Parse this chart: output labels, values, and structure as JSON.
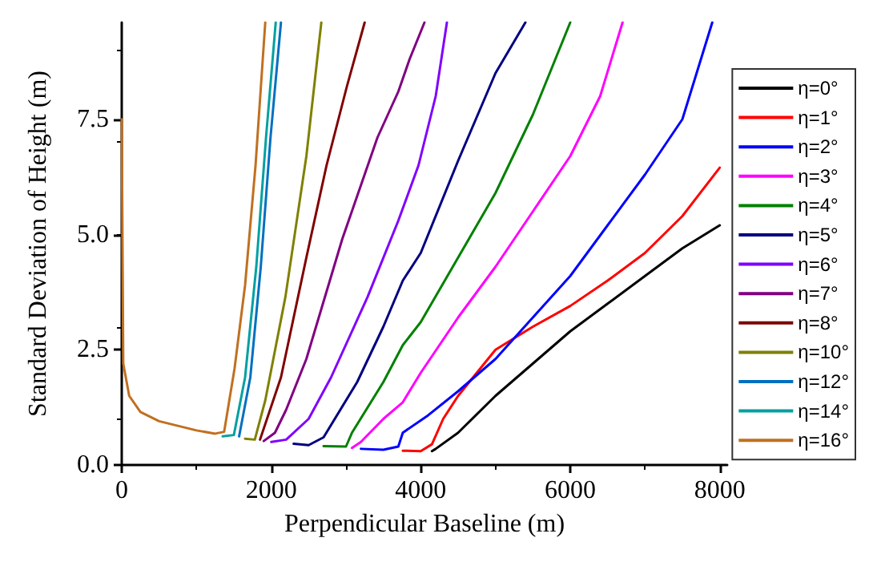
{
  "chart_data": {
    "type": "line",
    "xlabel": "Perpendicular Baseline (m)",
    "ylabel": "Standard Deviation of Height (m)",
    "xlim": [
      0,
      8100
    ],
    "ylim": [
      0,
      9.6
    ],
    "xticks": [
      0,
      2000,
      4000,
      6000,
      8000
    ],
    "yticks": [
      {
        "value": 0,
        "label": "0.0"
      },
      {
        "value": 2.5,
        "label": "2.5"
      },
      {
        "value": 5,
        "label": "5.0"
      },
      {
        "value": 7.5,
        "label": "7.5"
      }
    ],
    "grid": false,
    "legend": "right",
    "marker": "none",
    "line_style": "solid",
    "series": [
      {
        "name": "η=0°",
        "color": "#000000",
        "x": [
          4150,
          4200,
          4500,
          5000,
          5500,
          6000,
          6500,
          7000,
          7500,
          8000
        ],
        "values": [
          0.3,
          0.35,
          0.7,
          1.5,
          2.2,
          2.9,
          3.5,
          4.1,
          4.7,
          5.2
        ]
      },
      {
        "name": "η=1°",
        "color": "#ff0000",
        "x": [
          3760,
          4000,
          4150,
          4300,
          4500,
          5000,
          5500,
          6000,
          6500,
          7000,
          7500,
          8000
        ],
        "values": [
          0.31,
          0.3,
          0.45,
          1.0,
          1.5,
          2.5,
          3.0,
          3.45,
          4.0,
          4.6,
          5.4,
          6.45
        ]
      },
      {
        "name": "η=2°",
        "color": "#0000ff",
        "x": [
          3200,
          3500,
          3700,
          3760,
          4100,
          4500,
          5000,
          5500,
          6000,
          6500,
          7000,
          7500,
          7900
        ],
        "values": [
          0.35,
          0.33,
          0.4,
          0.7,
          1.08,
          1.6,
          2.3,
          3.2,
          4.1,
          5.2,
          6.3,
          7.5,
          9.6
        ]
      },
      {
        "name": "η=3°",
        "color": "#ff00ff",
        "x": [
          3080,
          3200,
          3500,
          3760,
          4000,
          4500,
          5000,
          5500,
          6000,
          6400,
          6700
        ],
        "values": [
          0.37,
          0.5,
          1.0,
          1.36,
          2.0,
          3.2,
          4.3,
          5.5,
          6.7,
          8.0,
          9.6
        ]
      },
      {
        "name": "η=4°",
        "color": "#008000",
        "x": [
          2700,
          3000,
          3080,
          3500,
          3760,
          4000,
          4500,
          5000,
          5500,
          6000
        ],
        "values": [
          0.41,
          0.4,
          0.7,
          1.8,
          2.6,
          3.1,
          4.5,
          5.9,
          7.6,
          9.6
        ]
      },
      {
        "name": "η=5°",
        "color": "#000080",
        "x": [
          2300,
          2500,
          2700,
          3150,
          3500,
          3760,
          4000,
          4500,
          5000,
          5400
        ],
        "values": [
          0.46,
          0.43,
          0.6,
          1.8,
          3.0,
          4.0,
          4.6,
          6.6,
          8.5,
          9.6
        ]
      },
      {
        "name": "η=6°",
        "color": "#8000ff",
        "x": [
          2000,
          2200,
          2500,
          2800,
          3290,
          3700,
          3970,
          4200,
          4350
        ],
        "values": [
          0.5,
          0.55,
          1.0,
          1.9,
          3.65,
          5.3,
          6.5,
          8.0,
          9.6
        ]
      },
      {
        "name": "η=7°",
        "color": "#800080",
        "x": [
          1900,
          2050,
          2200,
          2470,
          2950,
          3420,
          3700,
          3850,
          4050
        ],
        "values": [
          0.52,
          0.7,
          1.2,
          2.3,
          4.9,
          7.1,
          8.1,
          8.8,
          9.6
        ]
      },
      {
        "name": "η=8°",
        "color": "#800000",
        "x": [
          1850,
          2130,
          2470,
          2740,
          3010,
          3250
        ],
        "values": [
          0.55,
          1.9,
          4.5,
          6.5,
          8.2,
          9.6
        ]
      },
      {
        "name": "η=10°",
        "color": "#808000",
        "x": [
          1650,
          1780,
          1920,
          2190,
          2470,
          2670
        ],
        "values": [
          0.57,
          0.55,
          1.4,
          3.65,
          6.7,
          9.6
        ]
      },
      {
        "name": "η=12°",
        "color": "#0070c0",
        "x": [
          1570,
          1720,
          1860,
          1990,
          2130
        ],
        "values": [
          0.62,
          1.9,
          4.3,
          7.1,
          9.6
        ]
      },
      {
        "name": "η=14°",
        "color": "#00a0a0",
        "x": [
          1350,
          1500,
          1650,
          1800,
          1930,
          2060
        ],
        "values": [
          0.62,
          0.65,
          1.9,
          4.3,
          7.1,
          9.6
        ]
      },
      {
        "name": "η=16°",
        "color": "#c07020",
        "x": [
          0,
          20,
          100,
          250,
          500,
          1000,
          1250,
          1370,
          1510,
          1650,
          1790,
          1920
        ],
        "values": [
          7.5,
          2.2,
          1.5,
          1.15,
          0.95,
          0.75,
          0.68,
          0.72,
          2.1,
          3.9,
          6.5,
          9.6
        ]
      }
    ]
  }
}
